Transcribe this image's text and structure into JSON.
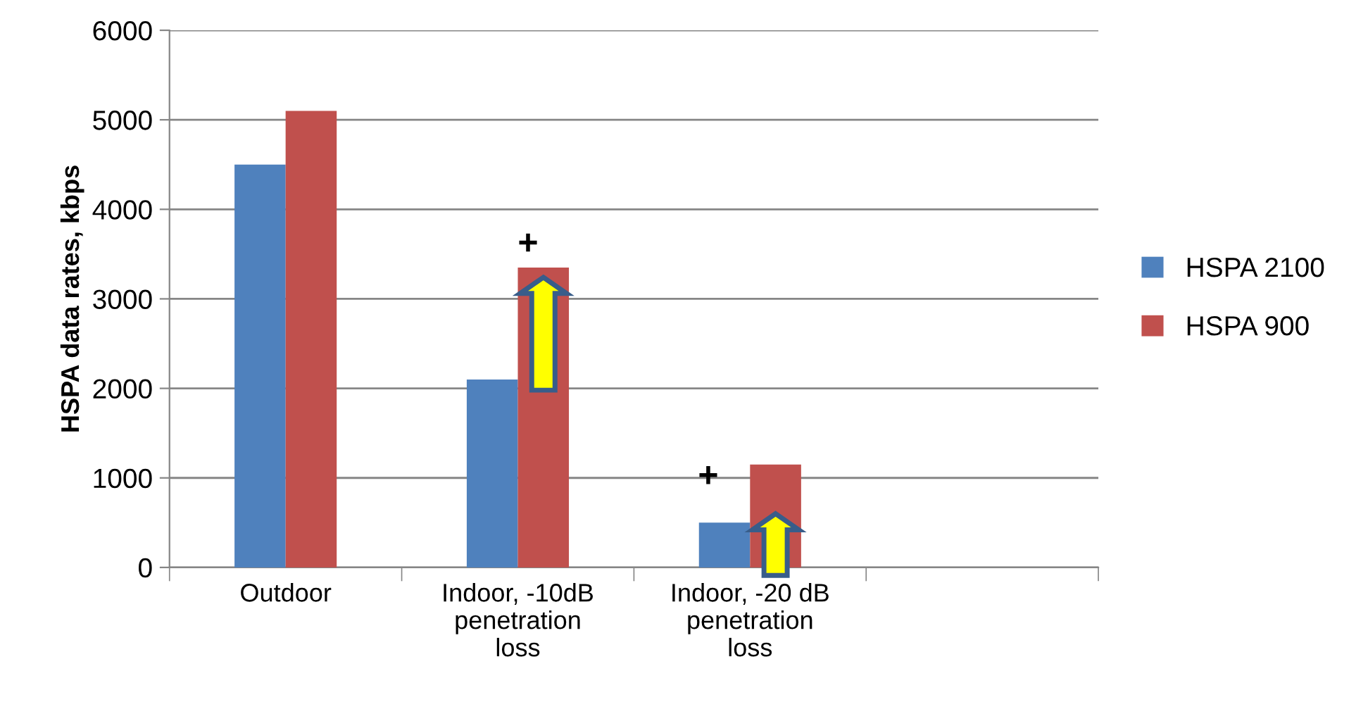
{
  "chart_data": {
    "type": "bar",
    "ylabel": "HSPA data rates, kbps",
    "categories": [
      "Outdoor",
      "Indoor, -10dB\npenetration\nloss",
      "Indoor, -20 dB\npenetration\nloss",
      null
    ],
    "series": [
      {
        "name": "HSPA 2100",
        "color": "#4f81bd",
        "values": [
          4500,
          2100,
          500,
          null
        ]
      },
      {
        "name": "HSPA 900",
        "color": "#c0504d",
        "values": [
          5100,
          3350,
          1150,
          null
        ]
      }
    ],
    "ylim": [
      0,
      6000
    ],
    "yticks": [
      0,
      1000,
      2000,
      3000,
      4000,
      5000,
      6000
    ],
    "grid": "y",
    "legend": "right",
    "annotations": [
      "+",
      "+"
    ]
  }
}
